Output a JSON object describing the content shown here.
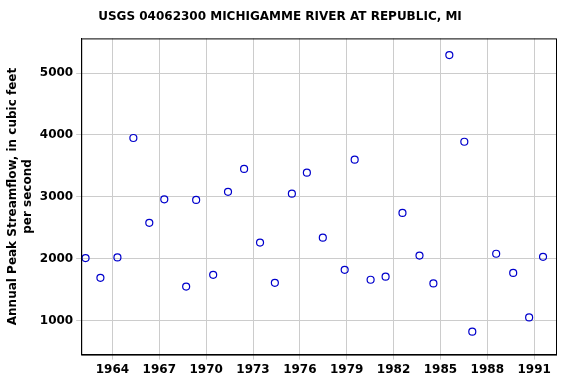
{
  "chart_data": {
    "type": "scatter",
    "title": "USGS 04062300 MICHIGAMME RIVER AT REPUBLIC, MI",
    "y_label": [
      "Annual Peak Streamflow, in cubic feet",
      "per second"
    ],
    "x": [
      1962.28,
      1963.23,
      1964.32,
      1965.34,
      1966.36,
      1967.32,
      1968.72,
      1969.36,
      1970.45,
      1971.4,
      1972.43,
      1973.45,
      1974.4,
      1975.49,
      1976.45,
      1977.47,
      1978.87,
      1979.51,
      1980.53,
      1981.49,
      1982.57,
      1983.66,
      1984.55,
      1985.57,
      1986.53,
      1987.04,
      1988.57,
      1989.66,
      1990.68,
      1991.57
    ],
    "values": [
      2010,
      1690,
      2020,
      3950,
      2580,
      2960,
      1550,
      2950,
      1740,
      3080,
      3450,
      2260,
      1610,
      3050,
      3390,
      2340,
      1820,
      3600,
      1660,
      1710,
      2740,
      2050,
      1600,
      5290,
      3890,
      820,
      2080,
      1770,
      1050,
      2030
    ],
    "color": "#0000cc",
    "marker": "circle",
    "xlim": [
      1962.0,
      1992.4
    ],
    "xticks": [
      1964,
      1967,
      1970,
      1973,
      1976,
      1979,
      1982,
      1985,
      1988,
      1991
    ],
    "ylim": [
      450,
      5560
    ],
    "yticks": [
      1000,
      2000,
      3000,
      4000,
      5000
    ],
    "grid": true
  }
}
